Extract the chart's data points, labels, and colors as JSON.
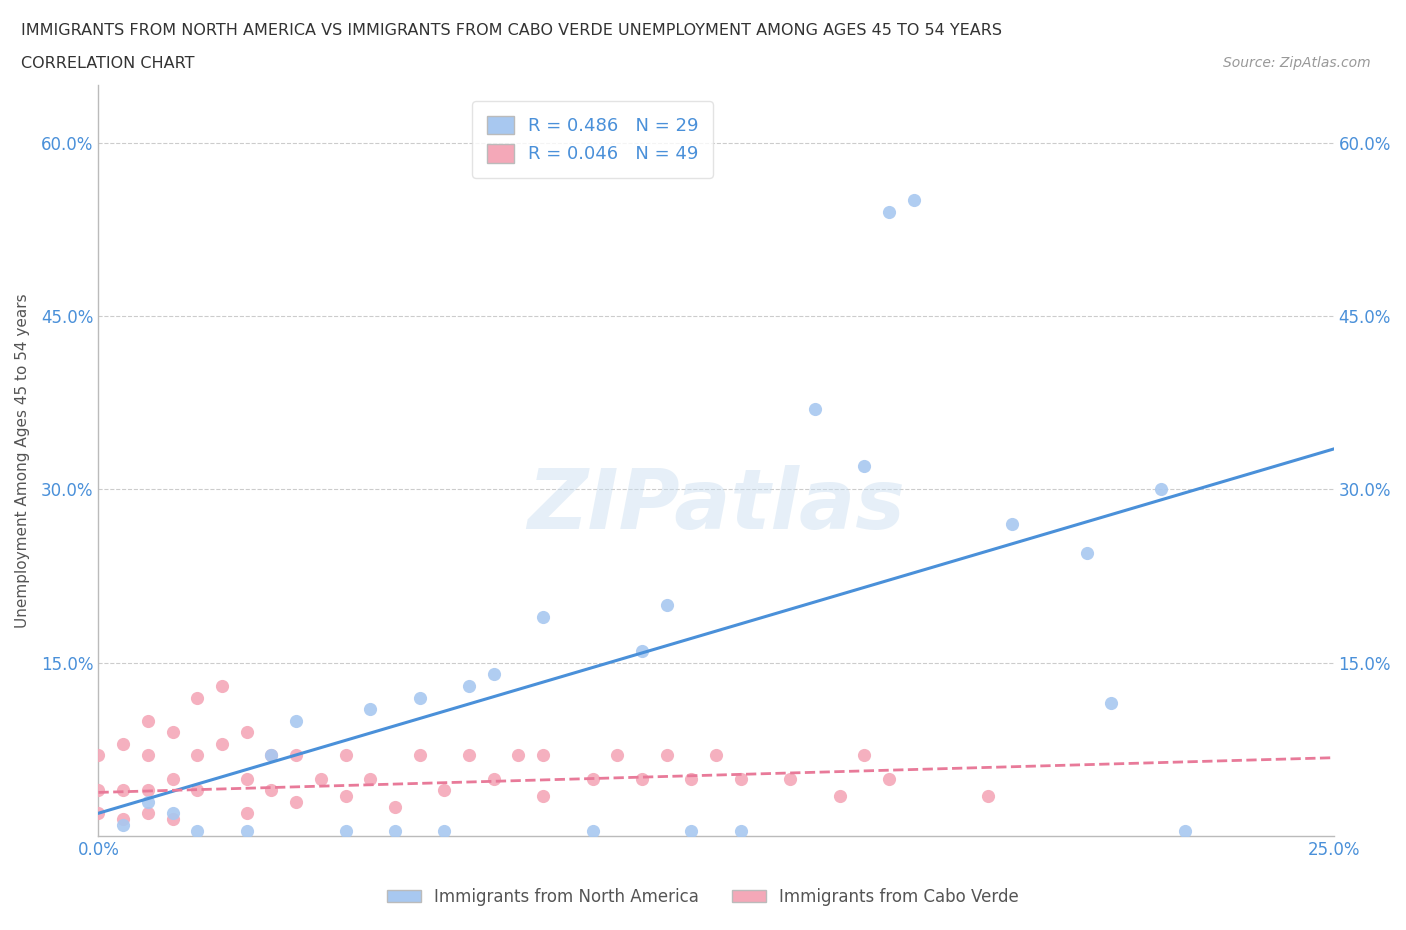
{
  "title_line1": "IMMIGRANTS FROM NORTH AMERICA VS IMMIGRANTS FROM CABO VERDE UNEMPLOYMENT AMONG AGES 45 TO 54 YEARS",
  "title_line2": "CORRELATION CHART",
  "source_text": "Source: ZipAtlas.com",
  "ylabel": "Unemployment Among Ages 45 to 54 years",
  "xlim": [
    0.0,
    0.25
  ],
  "ylim": [
    0.0,
    0.65
  ],
  "xticks": [
    0.0,
    0.05,
    0.1,
    0.15,
    0.2,
    0.25
  ],
  "xtick_labels": [
    "0.0%",
    "",
    "",
    "",
    "",
    "25.0%"
  ],
  "ytick_positions": [
    0.0,
    0.15,
    0.3,
    0.45,
    0.6
  ],
  "ytick_labels": [
    "",
    "15.0%",
    "30.0%",
    "45.0%",
    "60.0%"
  ],
  "blue_R": 0.486,
  "blue_N": 29,
  "pink_R": 0.046,
  "pink_N": 49,
  "blue_color": "#a8c8f0",
  "pink_color": "#f4a8b8",
  "blue_line_color": "#4a90d9",
  "pink_line_color": "#e87a99",
  "watermark": "ZIPatlas",
  "blue_scatter_x": [
    0.005,
    0.01,
    0.015,
    0.02,
    0.03,
    0.035,
    0.04,
    0.05,
    0.055,
    0.06,
    0.065,
    0.07,
    0.075,
    0.08,
    0.09,
    0.1,
    0.11,
    0.115,
    0.12,
    0.13,
    0.145,
    0.155,
    0.16,
    0.165,
    0.185,
    0.2,
    0.205,
    0.215,
    0.22
  ],
  "blue_scatter_y": [
    0.01,
    0.03,
    0.02,
    0.005,
    0.005,
    0.07,
    0.1,
    0.005,
    0.11,
    0.005,
    0.12,
    0.005,
    0.13,
    0.14,
    0.19,
    0.005,
    0.16,
    0.2,
    0.005,
    0.005,
    0.37,
    0.32,
    0.54,
    0.55,
    0.27,
    0.245,
    0.115,
    0.3,
    0.005
  ],
  "pink_scatter_x": [
    0.0,
    0.0,
    0.0,
    0.005,
    0.005,
    0.005,
    0.01,
    0.01,
    0.01,
    0.01,
    0.015,
    0.015,
    0.015,
    0.02,
    0.02,
    0.02,
    0.025,
    0.025,
    0.03,
    0.03,
    0.03,
    0.035,
    0.035,
    0.04,
    0.04,
    0.045,
    0.05,
    0.05,
    0.055,
    0.06,
    0.065,
    0.07,
    0.075,
    0.08,
    0.085,
    0.09,
    0.09,
    0.1,
    0.105,
    0.11,
    0.115,
    0.12,
    0.125,
    0.13,
    0.14,
    0.15,
    0.155,
    0.16,
    0.18
  ],
  "pink_scatter_y": [
    0.02,
    0.04,
    0.07,
    0.015,
    0.04,
    0.08,
    0.02,
    0.04,
    0.07,
    0.1,
    0.015,
    0.05,
    0.09,
    0.04,
    0.07,
    0.12,
    0.08,
    0.13,
    0.02,
    0.05,
    0.09,
    0.04,
    0.07,
    0.03,
    0.07,
    0.05,
    0.035,
    0.07,
    0.05,
    0.025,
    0.07,
    0.04,
    0.07,
    0.05,
    0.07,
    0.035,
    0.07,
    0.05,
    0.07,
    0.05,
    0.07,
    0.05,
    0.07,
    0.05,
    0.05,
    0.035,
    0.07,
    0.05,
    0.035
  ],
  "blue_line_x0": 0.0,
  "blue_line_y0": 0.02,
  "blue_line_x1": 0.25,
  "blue_line_y1": 0.335,
  "pink_line_x0": 0.0,
  "pink_line_y0": 0.038,
  "pink_line_x1": 0.25,
  "pink_line_y1": 0.068
}
